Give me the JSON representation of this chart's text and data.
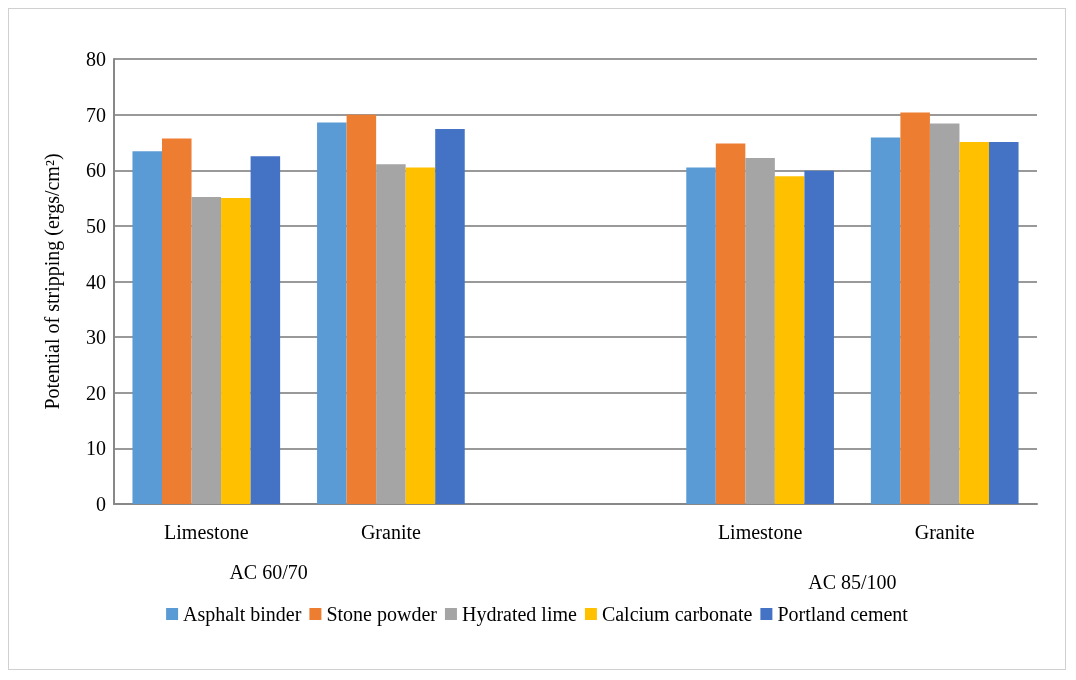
{
  "chart_data": {
    "type": "bar",
    "ylabel": "Potential of stripping (ergs/cm²)",
    "categories": [
      "Limestone",
      "Granite",
      null,
      "Limestone",
      "Granite"
    ],
    "annotations": [
      "AC 60/70",
      "AC 85/100"
    ],
    "series": [
      {
        "name": "Asphalt binder",
        "color": "#5b9bd5",
        "values": [
          63.4,
          68.6,
          null,
          60.5,
          65.9
        ]
      },
      {
        "name": "Stone powder",
        "color": "#ed7d31",
        "values": [
          65.7,
          70.0,
          null,
          64.8,
          70.4
        ]
      },
      {
        "name": "Hydrated lime",
        "color": "#a5a5a5",
        "values": [
          55.2,
          61.1,
          null,
          62.2,
          68.4
        ]
      },
      {
        "name": "Calcium carbonate",
        "color": "#ffc000",
        "values": [
          55.0,
          60.5,
          null,
          58.9,
          65.1
        ]
      },
      {
        "name": "Portland cement",
        "color": "#4472c4",
        "values": [
          62.5,
          67.4,
          null,
          59.9,
          65.1
        ]
      }
    ],
    "ylim": [
      0,
      80
    ],
    "yticks": [
      0,
      10,
      20,
      30,
      40,
      50,
      60,
      70,
      80
    ],
    "grid": "y",
    "legend": "bottom"
  }
}
